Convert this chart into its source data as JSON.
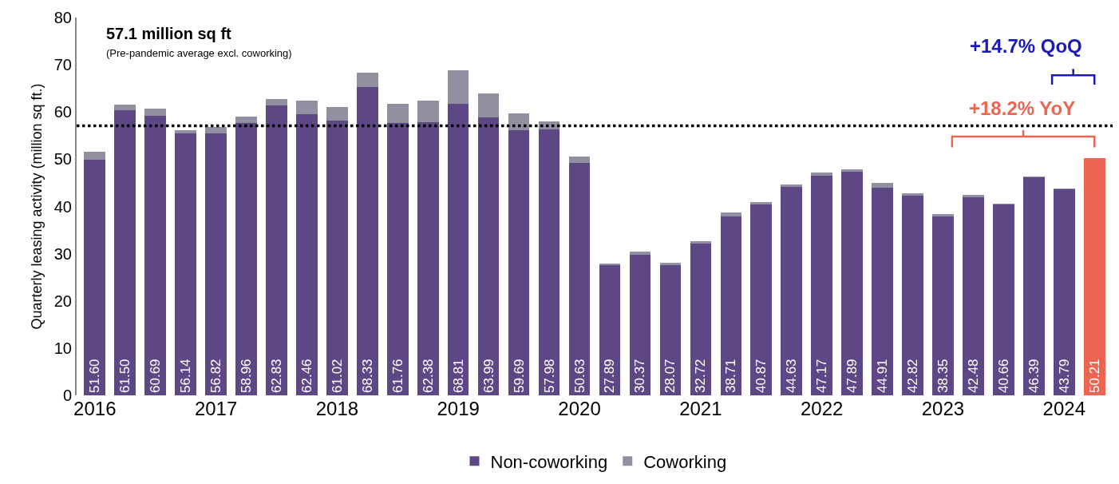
{
  "chart_data": {
    "type": "bar",
    "stacked": true,
    "ylabel": "Quarterly leasing activity (million sq ft.)",
    "categories": [
      "2016",
      null,
      null,
      null,
      "2017",
      null,
      null,
      null,
      "2018",
      null,
      null,
      null,
      "2019",
      null,
      null,
      null,
      "2020",
      null,
      null,
      null,
      "2021",
      null,
      null,
      null,
      "2022",
      null,
      null,
      null,
      "2023",
      null,
      null,
      null,
      "2024",
      null
    ],
    "series": [
      {
        "name": "Non-coworking",
        "color": "#5e4785",
        "colors": [
          null,
          null,
          null,
          null,
          null,
          null,
          null,
          null,
          null,
          null,
          null,
          null,
          null,
          null,
          null,
          null,
          null,
          null,
          null,
          null,
          null,
          null,
          null,
          null,
          null,
          null,
          null,
          null,
          null,
          null,
          null,
          null,
          null,
          "#ec6553"
        ],
        "values": [
          49.9,
          60.4,
          59.2,
          55.5,
          55.5,
          57.7,
          61.4,
          59.6,
          58.1,
          65.3,
          57.7,
          57.8,
          61.7,
          58.9,
          56.2,
          56.4,
          49.3,
          27.6,
          29.7,
          27.6,
          32.1,
          37.9,
          40.4,
          44.2,
          46.5,
          47.3,
          44.0,
          42.2,
          37.9,
          41.9,
          40.4,
          46.1,
          43.6,
          50.21
        ]
      },
      {
        "name": "Coworking",
        "color": "#9090a0",
        "values": [
          1.7,
          1.1,
          1.49,
          0.64,
          1.32,
          1.26,
          1.43,
          2.86,
          2.92,
          3.03,
          4.06,
          4.58,
          7.11,
          5.09,
          3.49,
          1.58,
          1.33,
          0.29,
          0.67,
          0.47,
          0.62,
          0.81,
          0.47,
          0.43,
          0.67,
          0.59,
          0.91,
          0.62,
          0.45,
          0.58,
          0.26,
          0.29,
          0.19,
          null
        ]
      }
    ],
    "totals": [
      "51.60",
      "61.50",
      "60.69",
      "56.14",
      "56.82",
      "58.96",
      "62.83",
      "62.46",
      "61.02",
      "68.33",
      "61.76",
      "62.38",
      "68.81",
      "63.99",
      "59.69",
      "57.98",
      "50.63",
      "27.89",
      "30.37",
      "28.07",
      "32.72",
      "38.71",
      "40.87",
      "44.63",
      "47.17",
      "47.89",
      "44.91",
      "42.82",
      "38.35",
      "42.48",
      "40.66",
      "46.39",
      "43.79",
      "50.21"
    ],
    "ylim": [
      0,
      80
    ],
    "yticks": [
      0,
      10,
      20,
      30,
      40,
      50,
      60,
      70,
      80
    ],
    "grid": false,
    "legend": "bottom",
    "ref_lines": [
      {
        "axis": "y",
        "value": 57.1,
        "color": "#000000",
        "line_style": "dotted"
      }
    ],
    "annotations": [
      "57.1 million sq ft",
      "(Pre-pandemic average excl. coworking)",
      "+14.7% QoQ",
      "+18.2% YoY"
    ]
  }
}
